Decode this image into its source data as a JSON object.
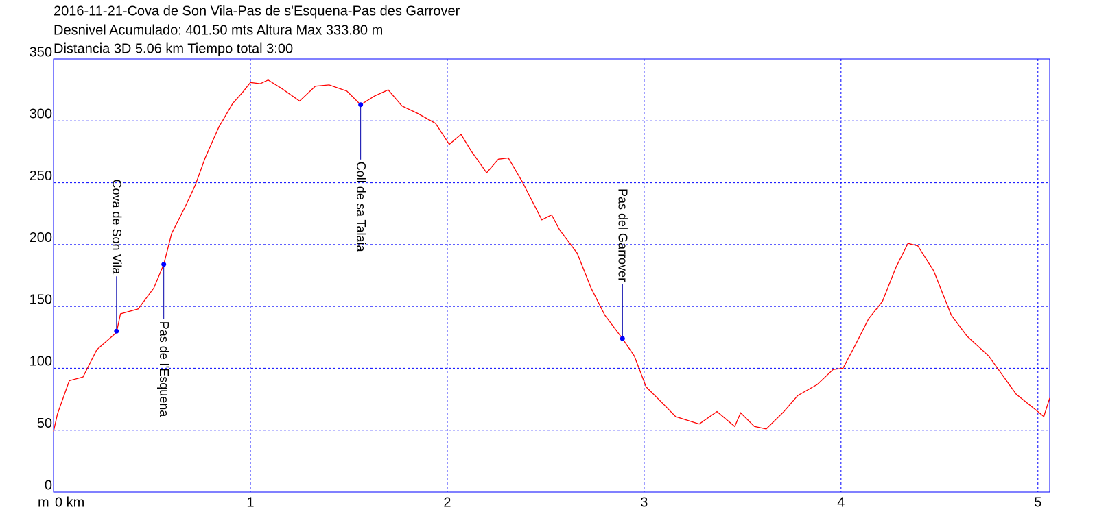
{
  "chart_data": {
    "type": "line",
    "title": "2016-11-21-Cova de Son Vila-Pas de s'Esquena-Pas des Garrover",
    "subtitle": "Desnivel Acumulado: 401.50 mts  Altura Max 333.80 m",
    "subtitle2": "Distancia 3D 5.06 km  Tiempo total 3:00",
    "ylabel": "m",
    "xlim": [
      0,
      5.06
    ],
    "ylim": [
      0,
      350
    ],
    "xticks": [
      {
        "value": 0,
        "label": "0 km"
      },
      1,
      2,
      3,
      4,
      5
    ],
    "yticks": [
      0,
      50,
      100,
      150,
      200,
      250,
      300,
      350
    ],
    "grid": true,
    "series": [
      {
        "color": "#ff0000",
        "x": [
          0,
          0.02,
          0.08,
          0.15,
          0.22,
          0.32,
          0.34,
          0.43,
          0.51,
          0.56,
          0.6,
          0.67,
          0.72,
          0.77,
          0.84,
          0.91,
          0.96,
          1.0,
          1.05,
          1.09,
          1.16,
          1.25,
          1.33,
          1.4,
          1.49,
          1.56,
          1.63,
          1.7,
          1.77,
          1.85,
          1.94,
          2.01,
          2.07,
          2.12,
          2.2,
          2.26,
          2.31,
          2.38,
          2.48,
          2.53,
          2.57,
          2.66,
          2.73,
          2.8,
          2.89,
          2.95,
          3.01,
          3.08,
          3.16,
          3.28,
          3.37,
          3.46,
          3.49,
          3.56,
          3.62,
          3.71,
          3.78,
          3.88,
          3.96,
          4.01,
          4.07,
          4.14,
          4.21,
          4.28,
          4.34,
          4.39,
          4.47,
          4.56,
          4.64,
          4.75,
          4.89,
          5.0,
          5.03,
          5.06
        ],
        "values": [
          49,
          63,
          90,
          93,
          115,
          129,
          144,
          148,
          165,
          184,
          209,
          231,
          248,
          270,
          295,
          314,
          323,
          331,
          330,
          333,
          326,
          316,
          328,
          329,
          324,
          313,
          320,
          325,
          312,
          306,
          298,
          281,
          289,
          276,
          258,
          269,
          270,
          251,
          220,
          224,
          212,
          193,
          165,
          143,
          124,
          110,
          85,
          74,
          61,
          55,
          65,
          53,
          64,
          53,
          51,
          65,
          78,
          87,
          99,
          100,
          118,
          140,
          154,
          182,
          201,
          199,
          179,
          143,
          126,
          110,
          79,
          65,
          61,
          76
        ]
      }
    ],
    "annotations": [
      {
        "label": "Cova de Son Vila",
        "x": 0.32,
        "y": 130
      },
      {
        "label": "Pas de l'Esquena",
        "x": 0.56,
        "y": 184
      },
      {
        "label": "Coll de sa Talaia",
        "x": 1.56,
        "y": 313
      },
      {
        "label": "Pas del Garrover",
        "x": 2.89,
        "y": 124
      }
    ]
  }
}
